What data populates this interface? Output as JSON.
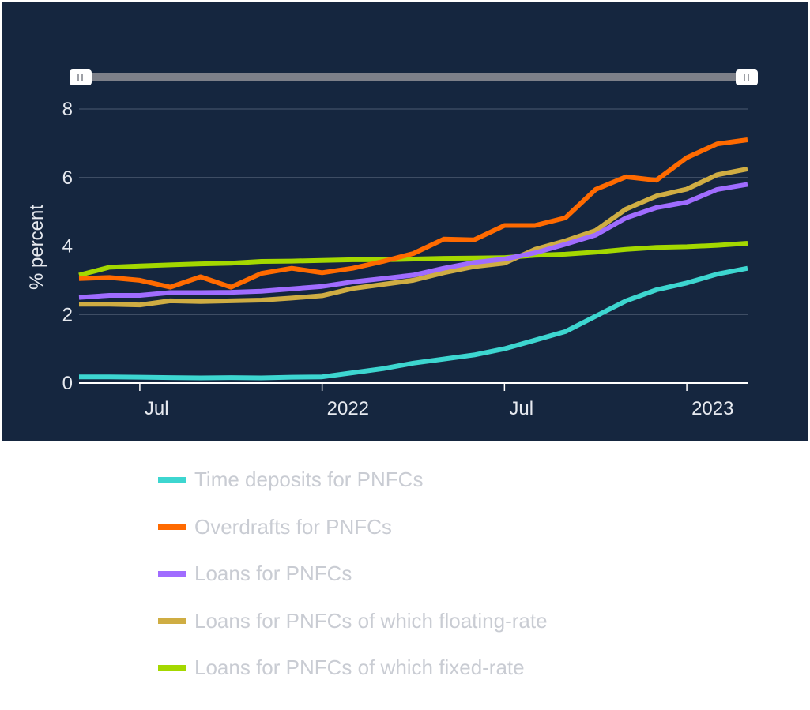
{
  "chart_data": {
    "type": "line",
    "title": "",
    "xlabel": "",
    "ylabel": "% percent",
    "ylim": [
      0,
      8
    ],
    "yticks": [
      0,
      2,
      4,
      6,
      8
    ],
    "xlim": [
      "2021-05",
      "2023-03"
    ],
    "xticks": [
      {
        "date": "2021-07",
        "label": "Jul"
      },
      {
        "date": "2022-01",
        "label": "2022"
      },
      {
        "date": "2022-07",
        "label": "Jul"
      },
      {
        "date": "2023-01",
        "label": "2023"
      }
    ],
    "grid": true,
    "legend_position": "bottom",
    "x": [
      "2021-05",
      "2021-06",
      "2021-07",
      "2021-08",
      "2021-09",
      "2021-10",
      "2021-11",
      "2021-12",
      "2022-01",
      "2022-02",
      "2022-03",
      "2022-04",
      "2022-05",
      "2022-06",
      "2022-07",
      "2022-08",
      "2022-09",
      "2022-10",
      "2022-11",
      "2022-12",
      "2023-01",
      "2023-02",
      "2023-03"
    ],
    "series": [
      {
        "name": "Time deposits for PNFCs",
        "color": "#3dd6d0",
        "values": [
          0.18,
          0.18,
          0.17,
          0.16,
          0.15,
          0.16,
          0.15,
          0.17,
          0.18,
          0.3,
          0.42,
          0.58,
          0.7,
          0.82,
          1.0,
          1.25,
          1.5,
          1.95,
          2.4,
          2.72,
          2.92,
          3.18,
          3.35
        ]
      },
      {
        "name": "Overdrafts for PNFCs",
        "color": "#ff6a00",
        "values": [
          3.05,
          3.08,
          3.0,
          2.8,
          3.1,
          2.8,
          3.2,
          3.35,
          3.22,
          3.35,
          3.55,
          3.78,
          4.2,
          4.18,
          4.6,
          4.6,
          4.82,
          5.65,
          6.02,
          5.92,
          6.58,
          6.98,
          7.1
        ]
      },
      {
        "name": "Loans for PNFCs",
        "color": "#a06cff",
        "values": [
          2.5,
          2.56,
          2.56,
          2.64,
          2.64,
          2.65,
          2.68,
          2.75,
          2.82,
          2.95,
          3.05,
          3.15,
          3.35,
          3.52,
          3.62,
          3.8,
          4.05,
          4.32,
          4.82,
          5.12,
          5.28,
          5.65,
          5.8
        ]
      },
      {
        "name": "Loans for PNFCs of which floating-rate",
        "color": "#cfad43",
        "values": [
          2.3,
          2.3,
          2.28,
          2.4,
          2.38,
          2.4,
          2.42,
          2.48,
          2.55,
          2.76,
          2.88,
          3.0,
          3.22,
          3.4,
          3.5,
          3.9,
          4.15,
          4.45,
          5.08,
          5.46,
          5.66,
          6.08,
          6.25
        ]
      },
      {
        "name": "Loans for PNFCs of which fixed-rate",
        "color": "#a4d800",
        "values": [
          3.15,
          3.38,
          3.42,
          3.45,
          3.48,
          3.5,
          3.55,
          3.56,
          3.58,
          3.6,
          3.6,
          3.62,
          3.64,
          3.65,
          3.66,
          3.73,
          3.76,
          3.82,
          3.9,
          3.96,
          3.98,
          4.02,
          4.08
        ]
      }
    ]
  }
}
